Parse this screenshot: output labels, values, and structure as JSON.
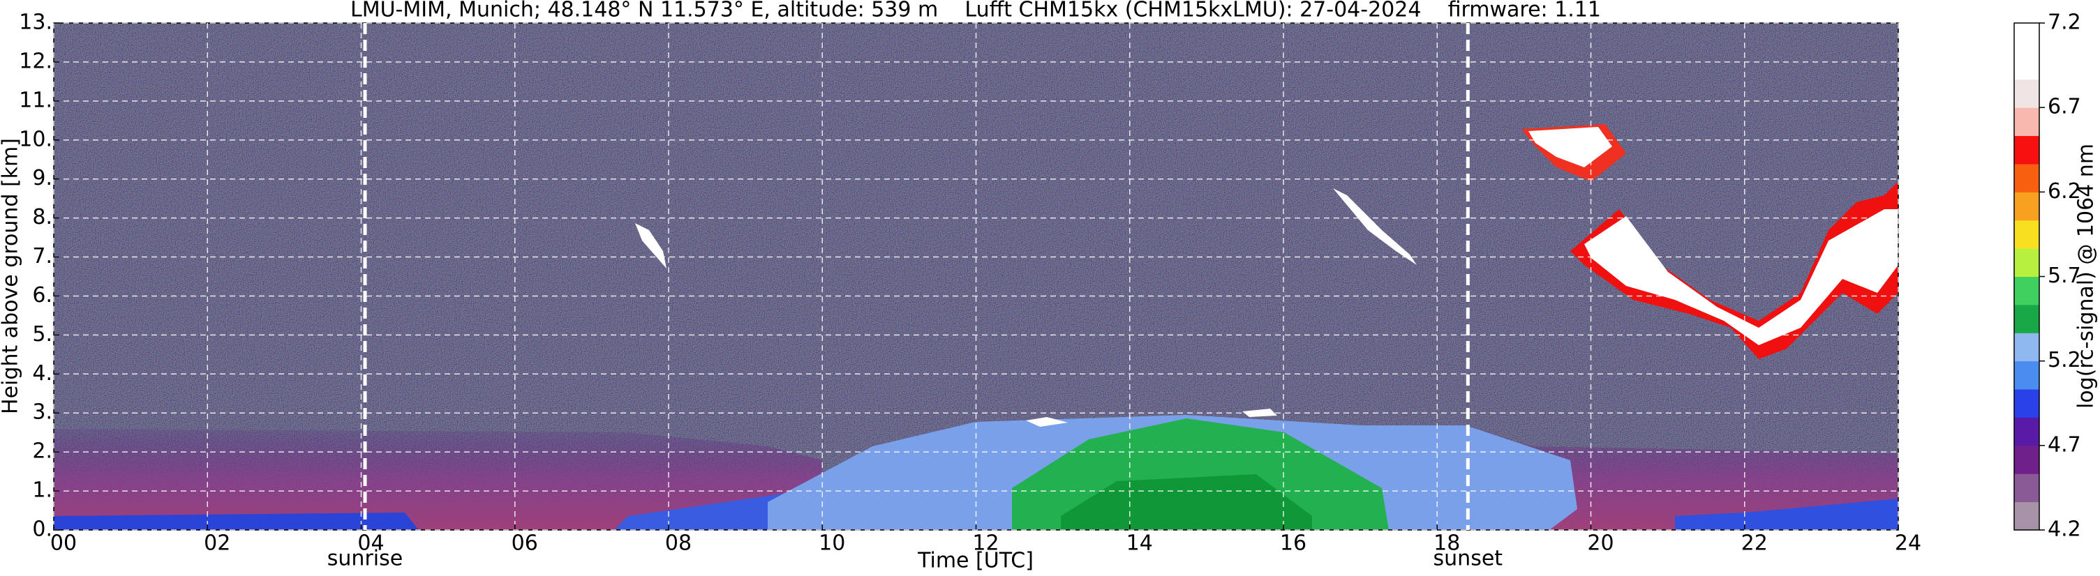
{
  "chart_data": {
    "type": "heatmap",
    "title": "LMU-MIM, Munich; 48.148° N 11.573° E, altitude: 539 m    Lufft CHM15kx (CHM15kxLMU): 27-04-2024    firmware: 1.11",
    "xlabel": "Time [UTC]",
    "ylabel": "Height above ground [km]",
    "xlim": [
      0,
      24
    ],
    "xticks": [
      {
        "value": 0,
        "label": "00"
      },
      {
        "value": 2,
        "label": "02"
      },
      {
        "value": 4,
        "label": "04"
      },
      {
        "value": 6,
        "label": "06"
      },
      {
        "value": 8,
        "label": "08"
      },
      10,
      12,
      14,
      16,
      18,
      20,
      22,
      24
    ],
    "ylim": [
      0,
      13
    ],
    "yticks": [
      {
        "value": 0,
        "label": "0."
      },
      {
        "value": 1,
        "label": "1."
      },
      {
        "value": 2,
        "label": "2."
      },
      {
        "value": 3,
        "label": "3."
      },
      {
        "value": 4,
        "label": "4."
      },
      {
        "value": 5,
        "label": "5."
      },
      {
        "value": 6,
        "label": "6."
      },
      {
        "value": 7,
        "label": "7."
      },
      {
        "value": 8,
        "label": "8."
      },
      {
        "value": 9,
        "label": "9."
      },
      {
        "value": 10,
        "label": "10."
      },
      {
        "value": 11,
        "label": "11."
      },
      {
        "value": 12,
        "label": "12."
      },
      {
        "value": 13,
        "label": "13."
      }
    ],
    "grid": true,
    "annotations": [
      {
        "x": 4.05,
        "label": "sunrise"
      },
      {
        "x": 18.4,
        "label": "sunset"
      }
    ],
    "colorbar": {
      "label": "log(rc-signal) @ 1064 nm",
      "lim": [
        4.2,
        7.2
      ],
      "ticks": [
        4.2,
        4.7,
        5.2,
        5.7,
        6.2,
        6.7,
        7.2
      ],
      "colors": [
        "#a892a8",
        "#8a5a96",
        "#70208a",
        "#5a1aa8",
        "#2a40e8",
        "#4a8cf0",
        "#90b8f0",
        "#18a848",
        "#40d060",
        "#b8f040",
        "#f8e020",
        "#f8a020",
        "#f86010",
        "#f81010",
        "#f8b8b0",
        "#f0e4e4",
        "#ffffff",
        "#ffffff"
      ]
    }
  }
}
